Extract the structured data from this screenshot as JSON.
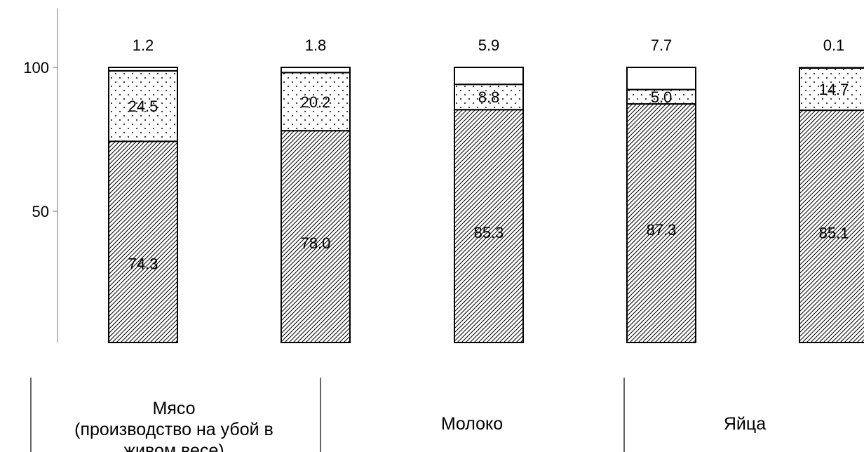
{
  "chart_data": {
    "type": "bar",
    "stacked": true,
    "title": "",
    "xlabel": "",
    "ylabel": "",
    "ylim": [
      5,
      120
    ],
    "yticks": [
      50,
      100
    ],
    "grid": false,
    "legend": "none",
    "groups": [
      {
        "label_lines": [
          "Мясо",
          "(производство на убой в",
          "живом весе)"
        ],
        "bar_count": 2
      },
      {
        "label_lines": [
          "Молоко"
        ],
        "bar_count": 1
      },
      {
        "label_lines": [
          "Яйца"
        ],
        "bar_count": 2
      }
    ],
    "series": [
      {
        "pattern": "hatched",
        "values": [
          74.3,
          78.0,
          85.3,
          87.3,
          85.1
        ]
      },
      {
        "pattern": "dotted",
        "values": [
          24.5,
          20.2,
          8.8,
          5.0,
          14.7
        ]
      },
      {
        "pattern": "plain",
        "values": [
          1.2,
          1.8,
          5.9,
          7.7,
          0.1
        ]
      }
    ],
    "colors": {
      "bar_fill": "#ffffff",
      "stroke": "#000000"
    }
  }
}
